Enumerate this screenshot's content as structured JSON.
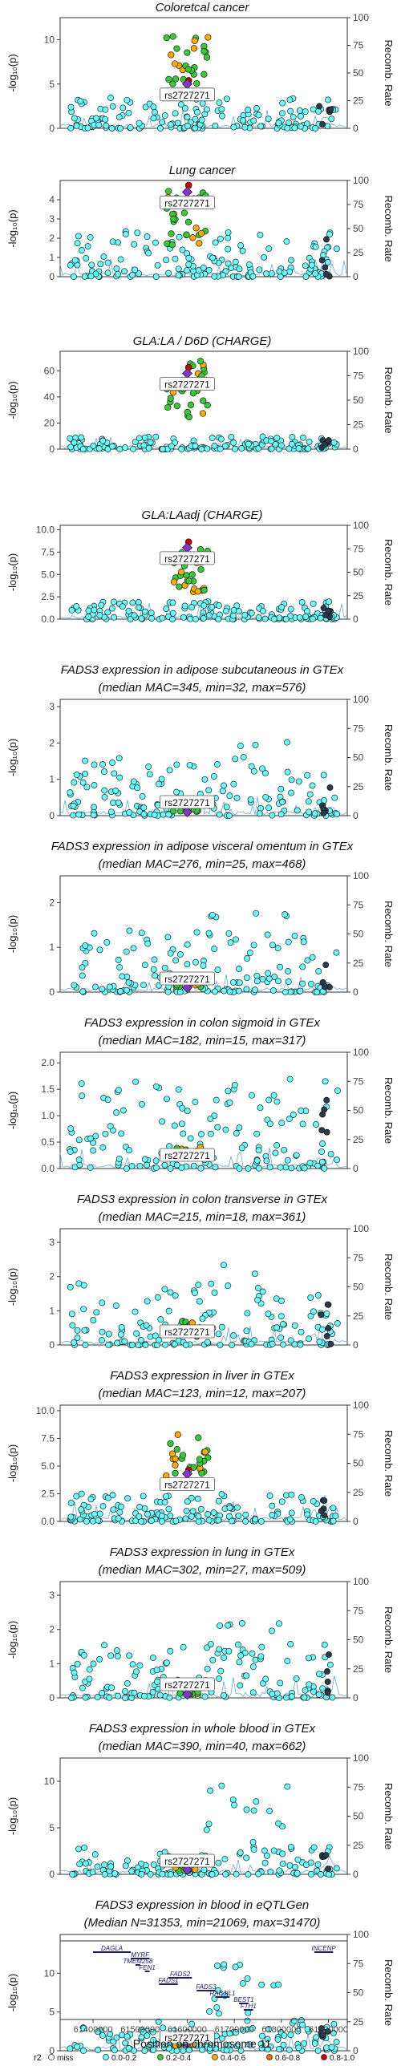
{
  "chart_data": {
    "type": "scatter",
    "lead_snp": "rs2727271",
    "x_axis_label": "Position on chromosome 11",
    "x_ticks": [
      61400000,
      61500000,
      61600000,
      61700000,
      61800000,
      61900000
    ],
    "x_range": [
      61330000,
      61940000
    ],
    "y_axis_label": "-log₁₀(p)",
    "y2_axis_label": "Recomb. Rate",
    "y2_ticks": [
      0,
      25,
      50,
      75,
      100
    ],
    "lead_position": 61600000,
    "legend": {
      "title": "r2",
      "items": [
        {
          "label": "miss",
          "color": "#ffffff"
        },
        {
          "label": "0.0-0.2",
          "color": "#66ffff"
        },
        {
          "label": "0.2-0.4",
          "color": "#33cc33"
        },
        {
          "label": "0.4-0.6",
          "color": "#ffaa00"
        },
        {
          "label": "0.6-0.8",
          "color": "#ff6600"
        },
        {
          "label": "0.8-1.0",
          "color": "#cc0000"
        }
      ],
      "lead_color": "#8833cc"
    },
    "panels": [
      {
        "title": "Coloretcal cancer",
        "subtitle": "",
        "y_ticks": [
          0,
          5,
          10
        ],
        "y_max": 12.5,
        "peak": 10.5,
        "lead_y": 5.0,
        "bg_max": 3.5,
        "pattern": "peak"
      },
      {
        "title": "Lung cancer",
        "subtitle": "",
        "y_ticks": [
          0,
          1,
          2,
          3,
          4
        ],
        "y_max": 5,
        "peak": 4.6,
        "lead_y": 4.4,
        "bg_max": 2.5,
        "pattern": "peak"
      },
      {
        "title": "GLA:LA / D6D (CHARGE)",
        "subtitle": "",
        "y_ticks": [
          0,
          20,
          40,
          60
        ],
        "y_max": 75,
        "peak": 68,
        "lead_y": 58,
        "bg_max": 10,
        "pattern": "peak"
      },
      {
        "title": "GLA:LAadj (CHARGE)",
        "subtitle": "",
        "y_ticks": [
          0.0,
          2.5,
          5.0,
          7.5,
          10.0
        ],
        "y_max": 10.5,
        "peak": 8.3,
        "lead_y": 8.0,
        "bg_max": 2.0,
        "pattern": "peak"
      },
      {
        "title": "FADS3 expression in adipose subcutaneous in GTEx",
        "subtitle": "(median MAC=345, min=32, max=576)",
        "y_ticks": [
          0,
          1,
          2,
          3
        ],
        "y_max": 3.2,
        "peak": 2.5,
        "lead_y": 0.1,
        "bg_max": 1.6,
        "pattern": "diffuse"
      },
      {
        "title": "FADS3 expression in adipose visceral omentum in GTEx",
        "subtitle": "(median MAC=276, min=25, max=468)",
        "y_ticks": [
          0,
          1,
          2
        ],
        "y_max": 2.6,
        "peak": 2.2,
        "lead_y": 0.1,
        "bg_max": 1.4,
        "pattern": "diffuse"
      },
      {
        "title": "FADS3 expression in colon sigmoid in GTEx",
        "subtitle": "(median MAC=182, min=15, max=317)",
        "y_ticks": [
          0.0,
          0.5,
          1.0,
          1.5,
          2.0
        ],
        "y_max": 2.2,
        "peak": 2.0,
        "lead_y": 0.3,
        "bg_max": 1.7,
        "pattern": "diffuse"
      },
      {
        "title": "FADS3 expression in colon transverse in GTEx",
        "subtitle": "(median MAC=215, min=18, max=361)",
        "y_ticks": [
          0,
          1,
          2,
          3
        ],
        "y_max": 3.4,
        "peak": 2.8,
        "lead_y": 0.5,
        "bg_max": 1.8,
        "pattern": "diffuse"
      },
      {
        "title": "FADS3 expression in liver in GTEx",
        "subtitle": "(median MAC=123, min=12, max=207)",
        "y_ticks": [
          0.0,
          2.5,
          5.0,
          7.5,
          10.0
        ],
        "y_max": 10.5,
        "peak": 8.0,
        "lead_y": 4.3,
        "bg_max": 2.5,
        "pattern": "peak"
      },
      {
        "title": "FADS3 expression in lung in GTEx",
        "subtitle": "(median MAC=302, min=27, max=509)",
        "y_ticks": [
          0,
          1,
          2,
          3
        ],
        "y_max": 3.4,
        "peak": 2.6,
        "lead_y": 0.1,
        "bg_max": 1.6,
        "pattern": "diffuse"
      },
      {
        "title": "FADS3 expression in whole blood in GTEx",
        "subtitle": "(median MAC=390, min=40, max=662)",
        "y_ticks": [
          0,
          5,
          10
        ],
        "y_max": 12.5,
        "peak": 11.5,
        "lead_y": 0.5,
        "bg_max": 3.0,
        "pattern": "diffuse"
      },
      {
        "title": "FADS3 expression in blood in eQTLGen",
        "subtitle": "(Median N=31353, min=21069, max=31470)",
        "y_ticks": [
          0,
          5,
          10
        ],
        "y_max": 15,
        "peak": 13.5,
        "lead_y": 1.0,
        "bg_max": 4.0,
        "pattern": "diffuse"
      }
    ],
    "genes": [
      {
        "name": "DAGLA",
        "start": 61400000,
        "end": 61480000
      },
      {
        "name": "MYRF",
        "start": 61480000,
        "end": 61520000
      },
      {
        "name": "TMEM258",
        "start": 61490000,
        "end": 61500000
      },
      {
        "name": "FEN1",
        "start": 61510000,
        "end": 61520000
      },
      {
        "name": "FADS2",
        "start": 61560000,
        "end": 61610000
      },
      {
        "name": "FADS1",
        "start": 61540000,
        "end": 61580000
      },
      {
        "name": "FADS3",
        "start": 61620000,
        "end": 61660000
      },
      {
        "name": "RAB3IL1",
        "start": 61660000,
        "end": 61690000
      },
      {
        "name": "BEST1",
        "start": 61710000,
        "end": 61730000
      },
      {
        "name": "FTH1",
        "start": 61720000,
        "end": 61740000
      },
      {
        "name": "INCENP",
        "start": 61870000,
        "end": 61910000
      }
    ]
  }
}
